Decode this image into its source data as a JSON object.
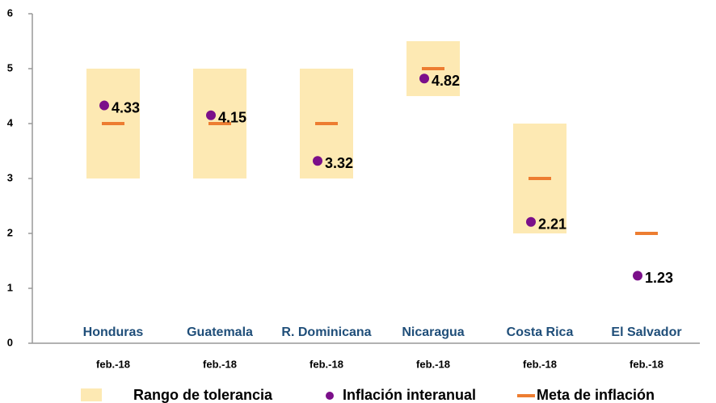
{
  "chart_data": {
    "type": "range-dot",
    "categories": [
      "Honduras",
      "Guatemala",
      "R. Dominicana",
      "Nicaragua",
      "Costa Rica",
      "El Salvador"
    ],
    "periods": [
      "feb.-18",
      "feb.-18",
      "feb.-18",
      "feb.-18",
      "feb.-18",
      "feb.-18"
    ],
    "range": {
      "name": "Rango de tolerancia",
      "color": "#fde9b3",
      "low": [
        3,
        3,
        3,
        4.5,
        2,
        null
      ],
      "high": [
        5,
        5,
        5,
        5.5,
        4,
        null
      ]
    },
    "series": [
      {
        "name": "Inflación interanual",
        "color": "#7b0f8a",
        "values": [
          4.33,
          4.15,
          3.32,
          4.82,
          2.21,
          1.23
        ]
      },
      {
        "name": "Meta de inflación",
        "color": "#ed7d31",
        "values": [
          4,
          4,
          4,
          5,
          3,
          2
        ]
      }
    ],
    "ylim": [
      0,
      6
    ],
    "yticks": [
      0,
      1,
      2,
      3,
      4,
      5,
      6
    ]
  }
}
